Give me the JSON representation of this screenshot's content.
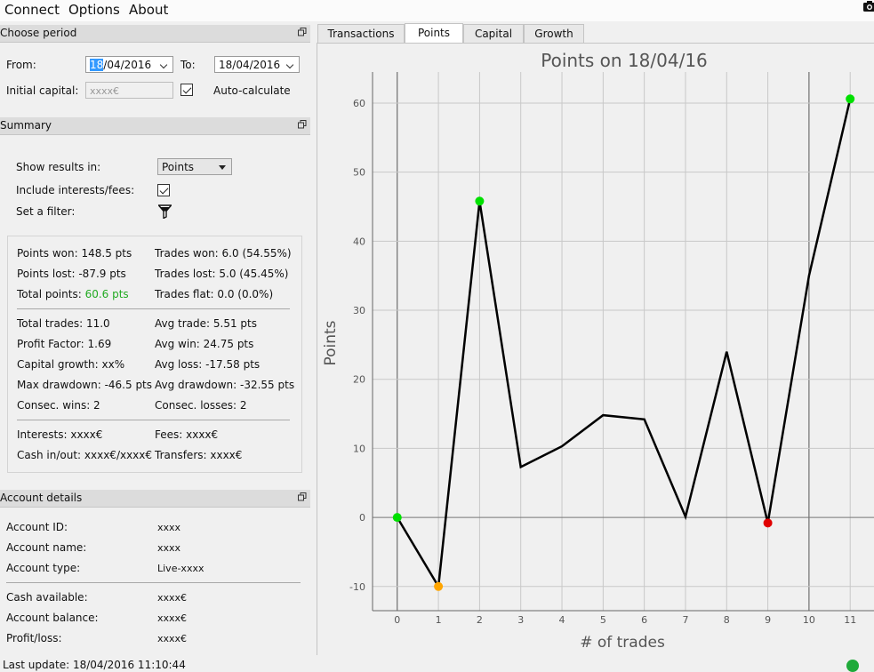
{
  "menu": {
    "items": [
      "Connect",
      "Options",
      "About"
    ]
  },
  "choose_period": {
    "title": "Choose period",
    "from_label": "From:",
    "from_value_day": "18",
    "from_value_rest": "/04/2016",
    "to_label": "To:",
    "to_value": "18/04/2016",
    "initial_capital_label": "Initial capital:",
    "initial_capital_placeholder": "xxxx€",
    "auto_calculate_label": "Auto-calculate"
  },
  "summary": {
    "title": "Summary",
    "show_results_label": "Show results in:",
    "show_results_value": "Points",
    "include_interests_label": "Include interests/fees:",
    "set_filter_label": "Set a filter:",
    "stats_left": [
      "Points won: 148.5 pts",
      "Points lost: -87.9 pts",
      "Total points: "
    ],
    "total_points_value": "60.6 pts",
    "stats_right": [
      "Trades won: 6.0 (54.55%)",
      "Trades lost: 5.0 (45.45%)",
      "Trades flat: 0.0 (0.0%)"
    ],
    "stats2_left": [
      "Total trades: 11.0",
      "Profit Factor: 1.69",
      "Capital growth: xx%",
      "Max drawdown: -46.5 pts",
      "Consec. wins: 2"
    ],
    "stats2_right": [
      "Avg trade: 5.51 pts",
      "Avg win: 24.75 pts",
      "Avg loss: -17.58 pts",
      "Avg drawdown: -32.55 pts",
      "Consec. losses: 2"
    ],
    "stats3_left": [
      "Interests: xxxx€",
      "Cash in/out: xxxx€/xxxx€"
    ],
    "stats3_right": [
      "Fees: xxxx€",
      "Transfers: xxxx€"
    ]
  },
  "account": {
    "title": "Account details",
    "rows1": [
      {
        "label": "Account ID:",
        "value": "xxxx"
      },
      {
        "label": "Account name:",
        "value": "xxxx"
      },
      {
        "label": "Account type:",
        "value": "Live-xxxx"
      }
    ],
    "rows2": [
      {
        "label": "Cash available:",
        "value": "xxxx€"
      },
      {
        "label": "Account balance:",
        "value": "xxxx€"
      },
      {
        "label": "Profit/loss:",
        "value": "xxxx€"
      }
    ]
  },
  "status": {
    "last_update": "Last update: 18/04/2016 11:10:44"
  },
  "tabs": [
    "Transactions",
    "Points",
    "Capital",
    "Growth"
  ],
  "active_tab": "Points",
  "colors": {
    "win": "#00e000",
    "loss_orange": "#ffa500",
    "loss_red": "#e00000",
    "line": "#000000",
    "total_points_green": "#22aa22"
  },
  "chart_data": {
    "type": "line",
    "title": "Points on 18/04/16",
    "xlabel": "# of trades",
    "ylabel": "Points",
    "x": [
      0,
      1,
      2,
      3,
      4,
      5,
      6,
      7,
      8,
      9,
      10,
      11
    ],
    "y": [
      0,
      -10,
      45.8,
      7.3,
      10.3,
      14.8,
      14.2,
      0.1,
      24,
      -0.8,
      35,
      60.6
    ],
    "markers": [
      {
        "x": 0,
        "y": 0,
        "color": "green"
      },
      {
        "x": 1,
        "y": -10,
        "color": "orange"
      },
      {
        "x": 2,
        "y": 45.8,
        "color": "green"
      },
      {
        "x": 9,
        "y": -0.8,
        "color": "red"
      },
      {
        "x": 11,
        "y": 60.6,
        "color": "green"
      }
    ],
    "xlim": [
      -0.6,
      11.6
    ],
    "ylim": [
      -13.5,
      64.5
    ],
    "xticks": [
      0,
      1,
      2,
      3,
      4,
      5,
      6,
      7,
      8,
      9,
      10,
      11
    ],
    "yticks": [
      -10,
      0,
      10,
      20,
      30,
      40,
      50,
      60
    ],
    "grid": true
  }
}
